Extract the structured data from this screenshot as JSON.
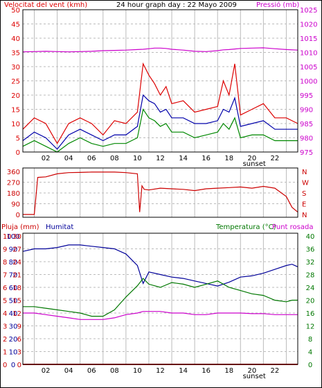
{
  "colors": {
    "wind": "#dd0000",
    "wind_avg": "#0000aa",
    "wind_min": "#008800",
    "pressure": "#cc00cc",
    "direction": "#cc0000",
    "rain": "#cc0000",
    "humidity": "#000099",
    "temperature": "#007700",
    "dewpoint": "#cc00cc",
    "grid": "#bbbbbb",
    "border": "#000000"
  },
  "chart_data": [
    {
      "type": "line",
      "title": "24 hour graph day : 22 Mayo 2009",
      "left_label": "Velocitat del vent (kmh)",
      "right_label": "Pressió (mb)",
      "x_ticks": [
        "02",
        "04",
        "06",
        "08",
        "10",
        "12",
        "14",
        "16",
        "18",
        "20",
        "22"
      ],
      "x_marker": "sunset",
      "left_axis": {
        "min": 0,
        "max": 50,
        "ticks": [
          0,
          5,
          10,
          15,
          20,
          25,
          30,
          35,
          40,
          45,
          50
        ]
      },
      "right_axis": {
        "min": 975,
        "max": 1025,
        "ticks": [
          975,
          980,
          985,
          990,
          995,
          1000,
          1005,
          1010,
          1015,
          1020,
          1025
        ]
      },
      "x_hours": [
        0,
        1,
        2,
        3,
        4,
        5,
        6,
        7,
        8,
        9,
        10,
        10.5,
        11,
        11.5,
        12,
        12.5,
        13,
        14,
        15,
        16,
        17,
        17.5,
        18,
        18.5,
        19,
        20,
        21,
        22,
        23,
        24
      ],
      "series": [
        {
          "key": "gust",
          "axis": "left",
          "values": [
            8,
            12,
            10,
            3,
            10,
            12,
            10,
            6,
            11,
            10,
            14,
            31,
            27,
            24,
            20,
            23,
            17,
            18,
            14,
            15,
            16,
            25,
            20,
            31,
            13,
            15,
            17,
            12,
            12,
            10
          ]
        },
        {
          "key": "avg",
          "axis": "left",
          "values": [
            4,
            7,
            5,
            1,
            6,
            8,
            6,
            4,
            6,
            6,
            9,
            20,
            18,
            17,
            14,
            15,
            12,
            12,
            10,
            10,
            11,
            15,
            14,
            19,
            9,
            10,
            11,
            8,
            8,
            8
          ]
        },
        {
          "key": "min",
          "axis": "left",
          "values": [
            2,
            4,
            2,
            0,
            3,
            5,
            3,
            2,
            3,
            3,
            5,
            15,
            12,
            11,
            9,
            10,
            7,
            7,
            5,
            6,
            7,
            10,
            8,
            12,
            5,
            6,
            6,
            4,
            4,
            4
          ]
        },
        {
          "key": "pressure",
          "axis": "right",
          "values": [
            1010.2,
            1010.3,
            1010.4,
            1010.3,
            1010.2,
            1010.3,
            1010.4,
            1010.6,
            1010.7,
            1010.8,
            1011,
            1011.1,
            1011.3,
            1011.5,
            1011.5,
            1011.4,
            1011.1,
            1010.8,
            1010.4,
            1010.3,
            1010.6,
            1010.9,
            1011,
            1011.2,
            1011.4,
            1011.5,
            1011.6,
            1011.3,
            1011,
            1010.8
          ]
        }
      ]
    },
    {
      "type": "line",
      "left_ticks": [
        "360",
        "270",
        "180",
        "90",
        "0"
      ],
      "right_ticks": [
        "N",
        "W",
        "S",
        "E",
        "N"
      ],
      "axis": {
        "min": 0,
        "max": 360
      },
      "x_hours": [
        0,
        1,
        1.3,
        2,
        3,
        4,
        5,
        6,
        7,
        8,
        9,
        10,
        10.2,
        10.4,
        10.6,
        11,
        12,
        13,
        14,
        15,
        16,
        17,
        18,
        19,
        20,
        21,
        22,
        23,
        23.5,
        24
      ],
      "values": [
        0,
        0,
        310,
        315,
        340,
        350,
        352,
        355,
        355,
        355,
        350,
        340,
        20,
        240,
        210,
        205,
        220,
        215,
        210,
        200,
        215,
        220,
        225,
        230,
        220,
        235,
        220,
        150,
        60,
        20
      ]
    },
    {
      "type": "line",
      "left_label_1": "Pluja (mm)",
      "left_label_2": "Humitat",
      "right_label_1": "Temperatura (°C)",
      "right_label_2": "Punt rosada",
      "x_ticks": [
        "02",
        "04",
        "06",
        "08",
        "10",
        "12",
        "14",
        "16",
        "18",
        "20",
        "22"
      ],
      "x_marker": "sunset",
      "rain_axis": {
        "min": 0,
        "max": 10,
        "ticks": [
          "0",
          "1",
          "2",
          "3",
          "4",
          "5",
          "6",
          "7",
          "8",
          "9",
          "10"
        ]
      },
      "humidity_axis": {
        "min": 0,
        "max": 100,
        "ticks": [
          "0",
          "10",
          "20",
          "30",
          "40",
          "50",
          "60",
          "70",
          "80",
          "90",
          "100"
        ]
      },
      "mid_axis": {
        "ticks": [
          "0",
          "3",
          "6",
          "9",
          "12",
          "15",
          "18",
          "21",
          "24",
          "27",
          "30"
        ]
      },
      "temp_axis": {
        "min": 0,
        "max": 40,
        "ticks": [
          "0",
          "4",
          "8",
          "12",
          "16",
          "20",
          "24",
          "28",
          "32",
          "36",
          "40"
        ]
      },
      "x_hours": [
        0,
        1,
        2,
        3,
        4,
        5,
        6,
        7,
        8,
        9,
        10,
        10.5,
        11,
        12,
        13,
        14,
        15,
        16,
        17,
        18,
        19,
        20,
        21,
        22,
        23,
        23.5,
        24
      ],
      "series": [
        {
          "key": "humidity",
          "axis": "humidity",
          "values": [
            88,
            90,
            90,
            91,
            93,
            93,
            92,
            91,
            90,
            86,
            77,
            63,
            72,
            70,
            68,
            67,
            65,
            63,
            61,
            64,
            68,
            69,
            71,
            74,
            77,
            78,
            76
          ]
        },
        {
          "key": "temperature",
          "axis": "temp",
          "values": [
            18,
            18,
            17.5,
            17,
            16.5,
            16,
            15,
            15,
            17,
            21,
            24.5,
            26.8,
            25,
            24,
            25.5,
            25,
            24,
            25,
            26,
            24,
            23,
            22,
            21.5,
            20,
            19.5,
            20,
            20
          ]
        },
        {
          "key": "dewpoint",
          "axis": "temp",
          "values": [
            16,
            16,
            15.5,
            15,
            14.5,
            14,
            14,
            14,
            14.5,
            15.5,
            16,
            16.5,
            16.5,
            16.5,
            16,
            16,
            15.5,
            15.5,
            16,
            16,
            16,
            15.8,
            15.8,
            15.5,
            15.5,
            15.5,
            15.5
          ]
        },
        {
          "key": "rain",
          "axis": "rain",
          "values": [
            0,
            0,
            0,
            0,
            0,
            0,
            0,
            0,
            0,
            0,
            0,
            0,
            0,
            0,
            0,
            0,
            0,
            0,
            0,
            0,
            0,
            0,
            0,
            0,
            0,
            0,
            0
          ]
        }
      ]
    }
  ]
}
